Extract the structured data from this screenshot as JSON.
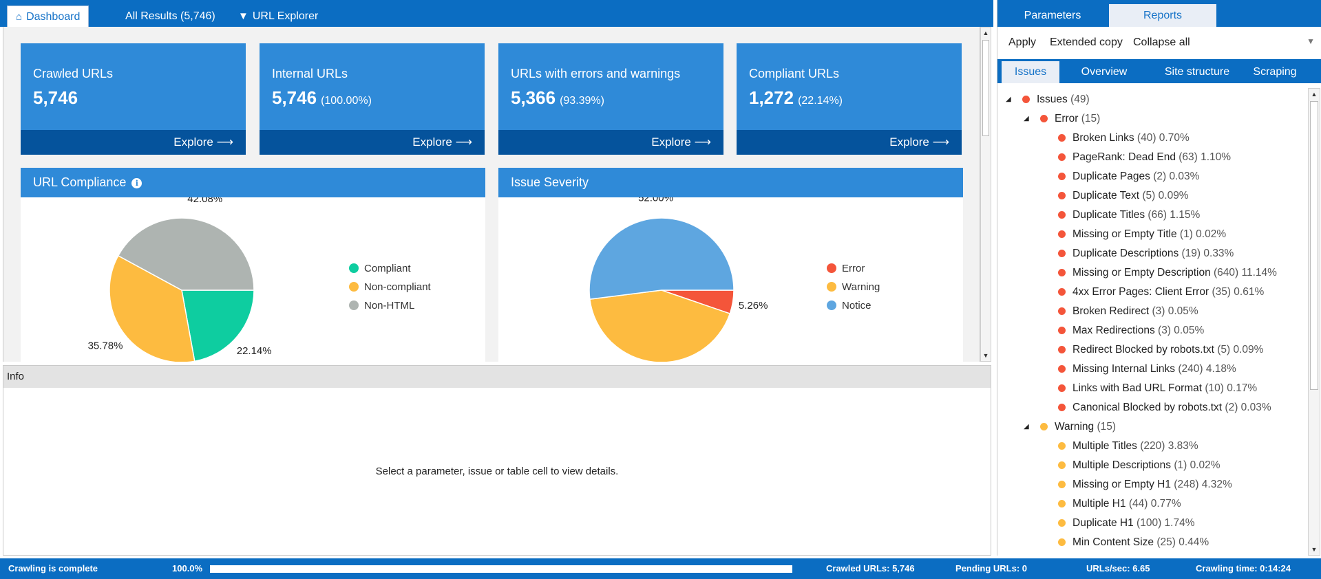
{
  "tabs": {
    "dashboard": "Dashboard",
    "all_results": "All Results (5,746)",
    "url_explorer": "URL Explorer"
  },
  "cards": [
    {
      "title": "Crawled URLs",
      "value": "5,746",
      "pct": "",
      "explore": "Explore"
    },
    {
      "title": "Internal URLs",
      "value": "5,746",
      "pct": "(100.00%)",
      "explore": "Explore"
    },
    {
      "title": "URLs with errors and warnings",
      "value": "5,366",
      "pct": "(93.39%)",
      "explore": "Explore"
    },
    {
      "title": "Compliant URLs",
      "value": "1,272",
      "pct": "(22.14%)",
      "explore": "Explore"
    }
  ],
  "chart_data": [
    {
      "type": "pie",
      "title": "URL Compliance",
      "categories": [
        "Compliant",
        "Non-compliant",
        "Non-HTML"
      ],
      "values": [
        22.14,
        35.78,
        42.08
      ],
      "labels": [
        "22.14%",
        "35.78%",
        "42.08%"
      ],
      "colors": [
        "#0ecda0",
        "#fdbb40",
        "#aeb4b1"
      ],
      "legend": "right"
    },
    {
      "type": "pie",
      "title": "Issue Severity",
      "categories": [
        "Error",
        "Warning",
        "Notice"
      ],
      "values": [
        5.26,
        42.74,
        52.0
      ],
      "labels": [
        "5.26%",
        "",
        "52.00%"
      ],
      "colors": [
        "#f4553a",
        "#fdbb40",
        "#5ea6e0"
      ],
      "legend": "right"
    }
  ],
  "info": {
    "title": "Info",
    "message": "Select a parameter, issue or table cell to view details."
  },
  "right": {
    "tabs": {
      "parameters": "Parameters",
      "reports": "Reports"
    },
    "actions": {
      "apply": "Apply",
      "extended_copy": "Extended copy",
      "collapse_all": "Collapse all"
    },
    "subtabs": {
      "issues": "Issues",
      "overview": "Overview",
      "site_structure": "Site structure",
      "scraping": "Scraping"
    },
    "tree": {
      "root": {
        "label": "Issues",
        "count": "(49)"
      },
      "error": {
        "label": "Error",
        "count": "(15)"
      },
      "error_items": [
        {
          "label": "Broken Links",
          "count": "(40)",
          "pct": "0.70%"
        },
        {
          "label": "PageRank: Dead End",
          "count": "(63)",
          "pct": "1.10%"
        },
        {
          "label": "Duplicate Pages",
          "count": "(2)",
          "pct": "0.03%"
        },
        {
          "label": "Duplicate Text",
          "count": "(5)",
          "pct": "0.09%"
        },
        {
          "label": "Duplicate Titles",
          "count": "(66)",
          "pct": "1.15%"
        },
        {
          "label": "Missing or Empty Title",
          "count": "(1)",
          "pct": "0.02%"
        },
        {
          "label": "Duplicate Descriptions",
          "count": "(19)",
          "pct": "0.33%"
        },
        {
          "label": "Missing or Empty Description",
          "count": "(640)",
          "pct": "11.14%"
        },
        {
          "label": "4xx Error Pages: Client Error",
          "count": "(35)",
          "pct": "0.61%"
        },
        {
          "label": "Broken Redirect",
          "count": "(3)",
          "pct": "0.05%"
        },
        {
          "label": "Max Redirections",
          "count": "(3)",
          "pct": "0.05%"
        },
        {
          "label": "Redirect Blocked by robots.txt",
          "count": "(5)",
          "pct": "0.09%"
        },
        {
          "label": "Missing Internal Links",
          "count": "(240)",
          "pct": "4.18%"
        },
        {
          "label": "Links with Bad URL Format",
          "count": "(10)",
          "pct": "0.17%"
        },
        {
          "label": "Canonical Blocked by robots.txt",
          "count": "(2)",
          "pct": "0.03%"
        }
      ],
      "warning": {
        "label": "Warning",
        "count": "(15)"
      },
      "warning_items": [
        {
          "label": "Multiple Titles",
          "count": "(220)",
          "pct": "3.83%"
        },
        {
          "label": "Multiple Descriptions",
          "count": "(1)",
          "pct": "0.02%"
        },
        {
          "label": "Missing or Empty H1",
          "count": "(248)",
          "pct": "4.32%"
        },
        {
          "label": "Multiple H1",
          "count": "(44)",
          "pct": "0.77%"
        },
        {
          "label": "Duplicate H1",
          "count": "(100)",
          "pct": "1.74%"
        },
        {
          "label": "Min Content Size",
          "count": "(25)",
          "pct": "0.44%"
        }
      ]
    }
  },
  "status": {
    "state": "Crawling is complete",
    "progress_text": "100.0%",
    "progress_fraction": 1.0,
    "crawled": "Crawled URLs: 5,746",
    "pending": "Pending URLs: 0",
    "rate": "URLs/sec: 6.65",
    "time": "Crawling time: 0:14:24"
  },
  "colors": {
    "brand_blue": "#0b6dc2",
    "card_blue": "#2f8ad8",
    "card_footer": "#05539c",
    "error": "#f4553a",
    "warning": "#fdbb40"
  }
}
